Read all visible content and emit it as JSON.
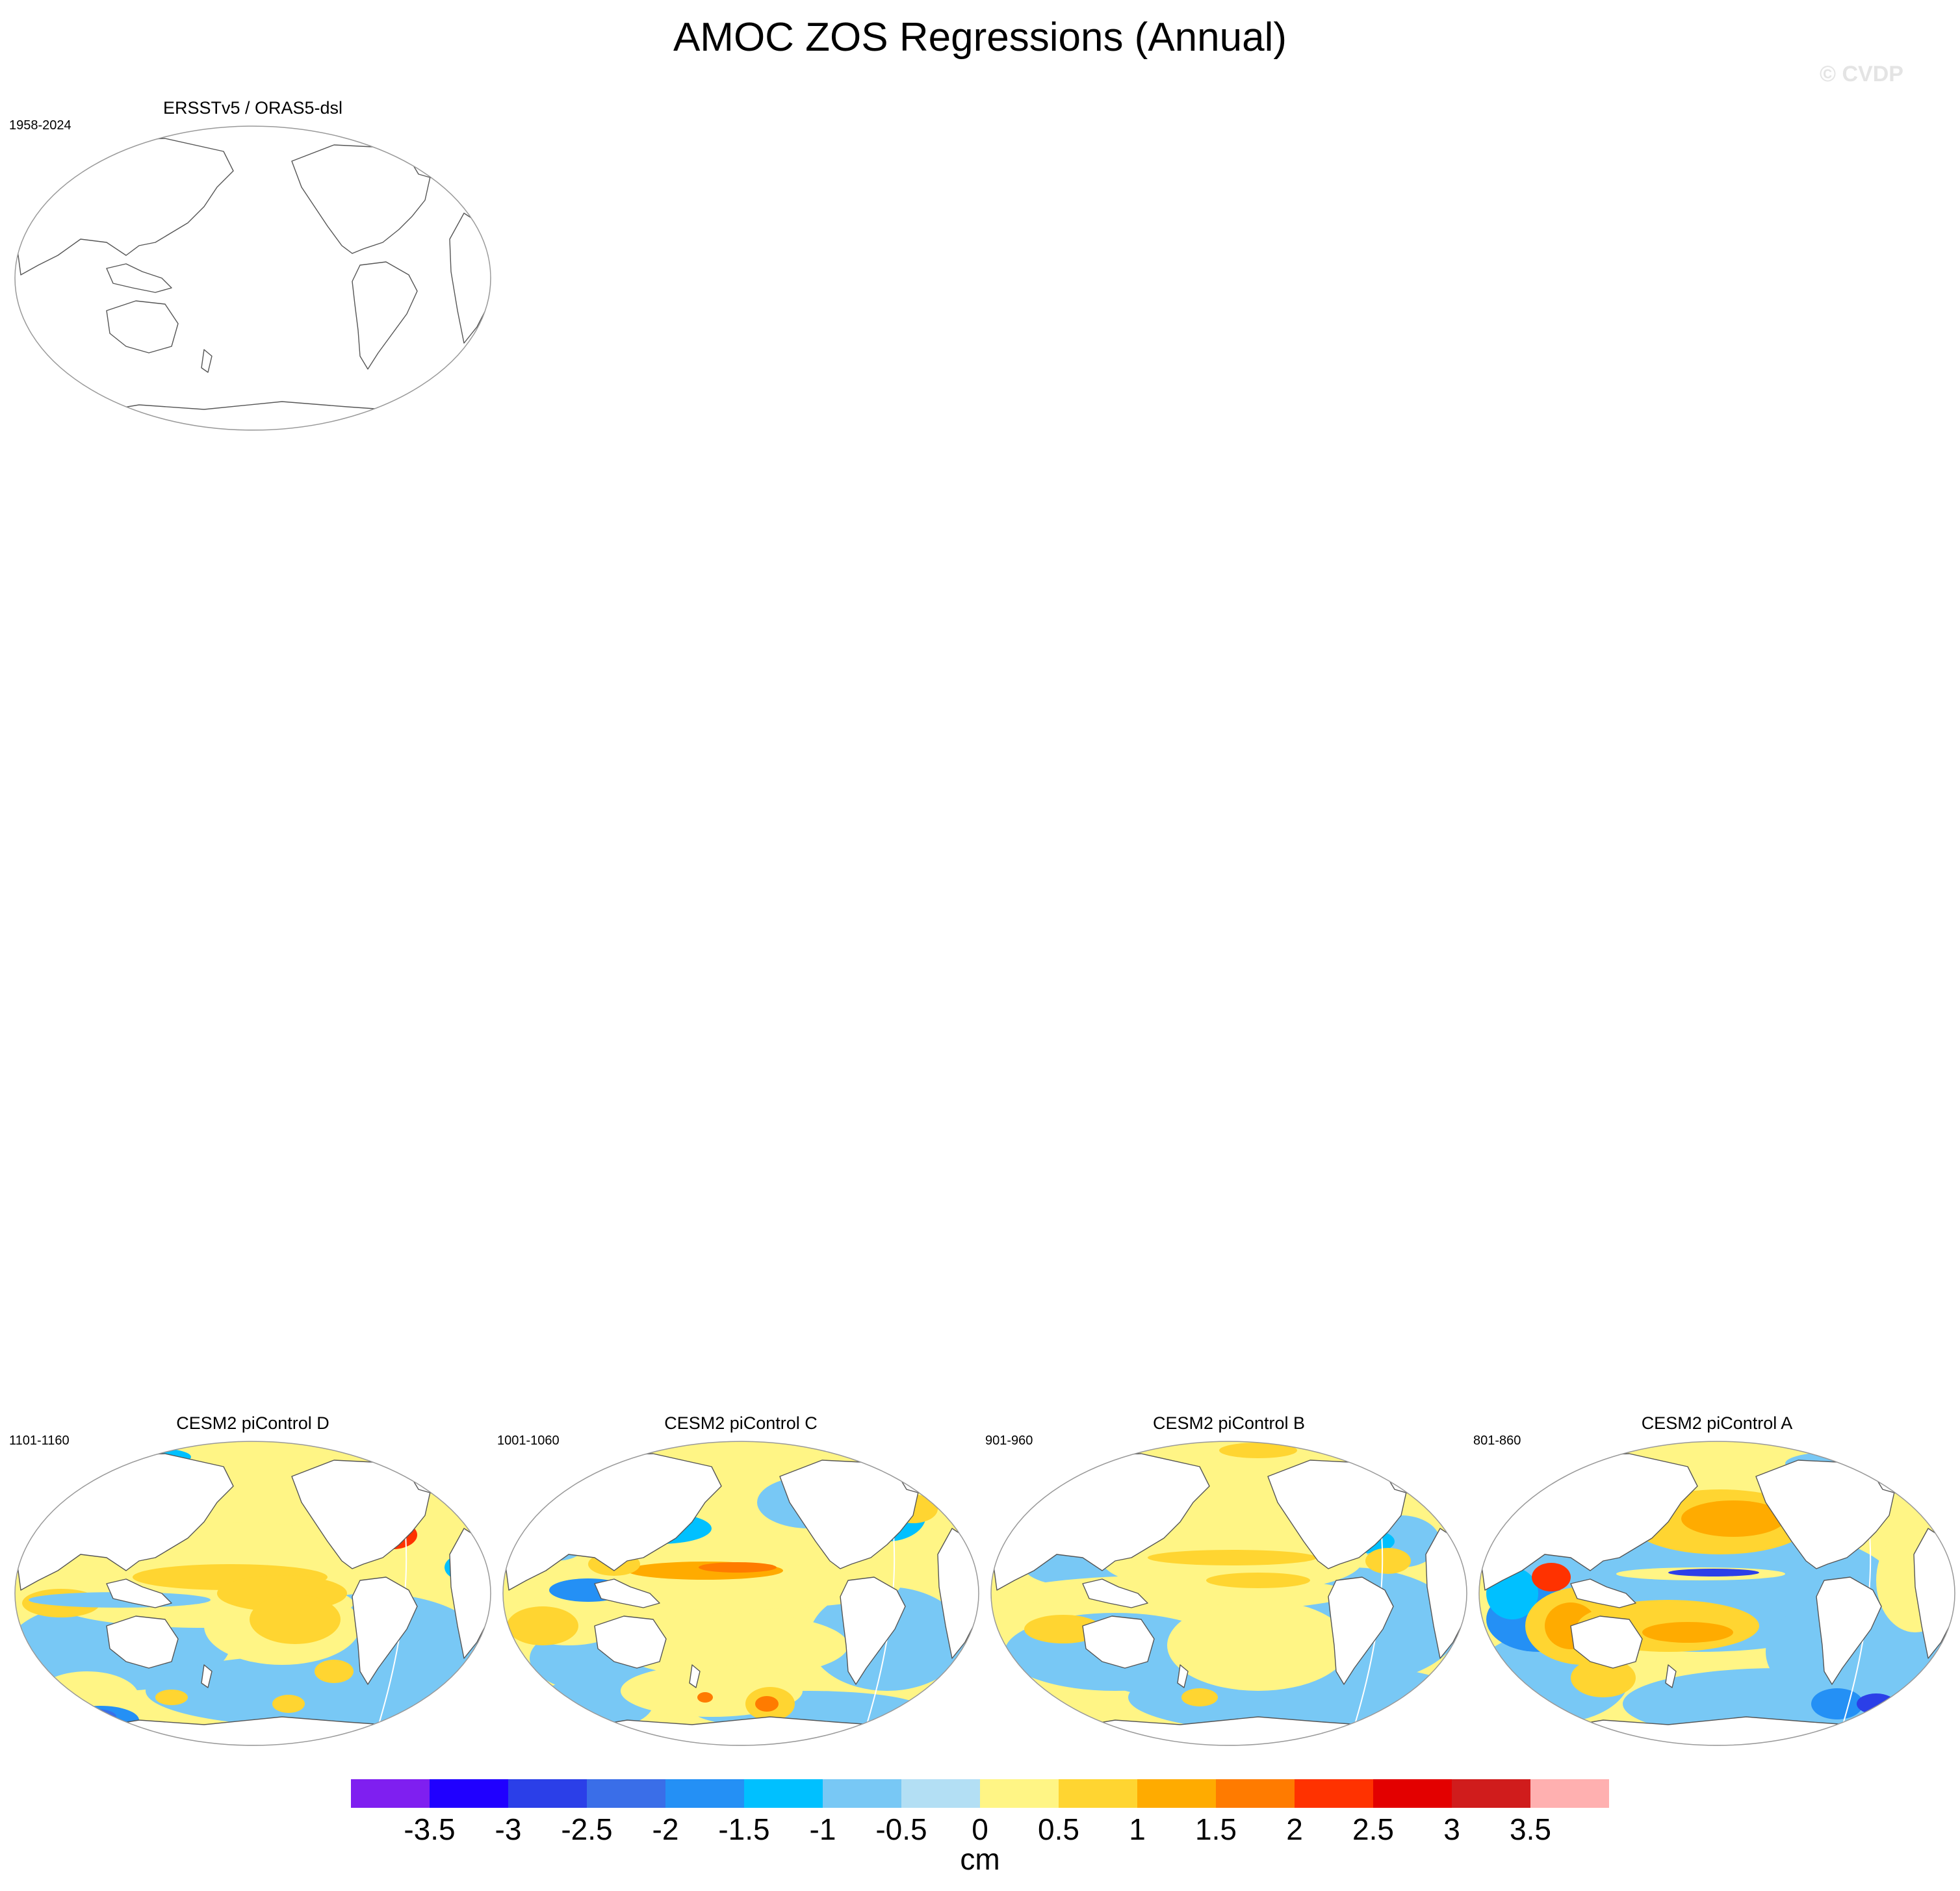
{
  "title": "AMOC ZOS Regressions (Annual)",
  "watermark": "© CVDP",
  "colorbar": {
    "unit": "cm",
    "colors": [
      "#7f1ff0",
      "#2000ff",
      "#2b3fe8",
      "#3a6ee8",
      "#2490f5",
      "#00c0ff",
      "#78c8f5",
      "#b3dff4",
      "#fff585",
      "#ffd531",
      "#ffab00",
      "#ff7b00",
      "#ff3200",
      "#e30000",
      "#d01c1c",
      "#ffb0b0"
    ],
    "labels": [
      "-3.5",
      "-3",
      "-2.5",
      "-2",
      "-1.5",
      "-1",
      "-0.5",
      "0",
      "0.5",
      "1",
      "1.5",
      "2",
      "2.5",
      "3",
      "3.5"
    ]
  },
  "panels": [
    {
      "title": "ERSSTv5 / ORAS5-dsl",
      "period": "1958-2024",
      "filled": false
    },
    {
      "title": "CESM2 piControl D",
      "period": "1101-1160",
      "filled": true
    },
    {
      "title": "CESM2 piControl C",
      "period": "1001-1060",
      "filled": true
    },
    {
      "title": "CESM2 piControl B",
      "period": "901-960",
      "filled": true
    },
    {
      "title": "CESM2 piControl A",
      "period": "801-860",
      "filled": true
    }
  ]
}
